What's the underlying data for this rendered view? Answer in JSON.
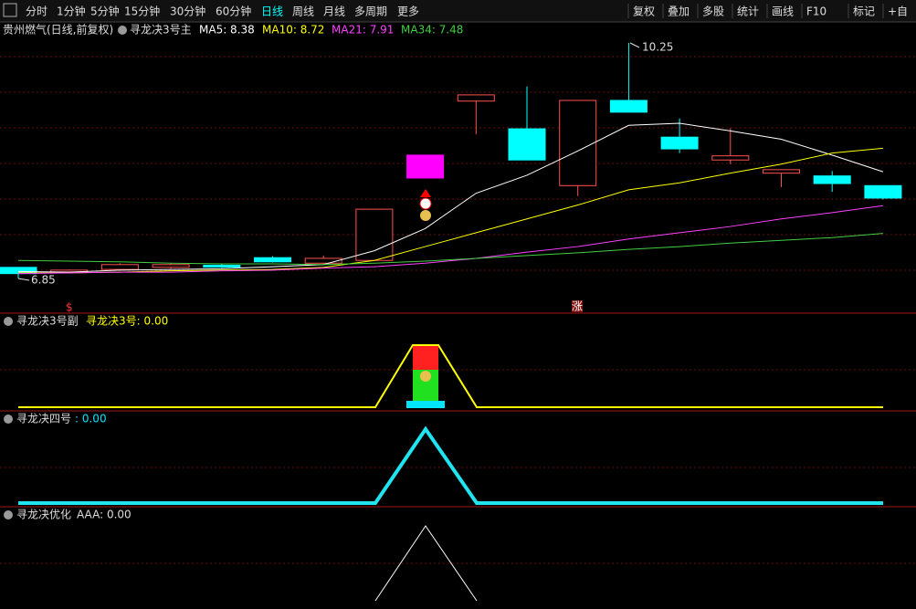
{
  "toolbar": {
    "periods": [
      "分时",
      "1分钟",
      "5分钟",
      "15分钟",
      "30分钟",
      "60分钟",
      "日线",
      "周线",
      "月线",
      "多周期",
      "更多"
    ],
    "active": "日线",
    "tools": [
      "复权",
      "叠加",
      "多股",
      "统计",
      "画线",
      "F10",
      "标记",
      "+自"
    ]
  },
  "price_panel": {
    "title": "贵州燃气(日线,前复权)",
    "indicator": "寻龙决3号主",
    "ma": [
      {
        "label": "MA5: 8.38",
        "color": "#ffffff",
        "values": [
          6.95,
          6.94,
          6.97,
          6.98,
          6.99,
          7.02,
          7.05,
          7.25,
          7.57,
          8.08,
          8.34,
          8.69,
          9.06,
          9.09,
          8.98,
          8.86,
          8.63,
          8.39
        ]
      },
      {
        "label": "MA10: 8.72",
        "color": "#ffff00",
        "values": [
          6.93,
          6.93,
          6.94,
          6.96,
          6.97,
          6.98,
          7.01,
          7.11,
          7.31,
          7.51,
          7.71,
          7.91,
          8.13,
          8.23,
          8.37,
          8.5,
          8.66,
          8.73
        ]
      },
      {
        "label": "MA21: 7.91",
        "color": "#ff40ff",
        "values": [
          6.92,
          6.93,
          6.94,
          6.94,
          6.96,
          6.97,
          7.0,
          7.02,
          7.07,
          7.14,
          7.23,
          7.31,
          7.42,
          7.51,
          7.6,
          7.71,
          7.8,
          7.9
        ]
      },
      {
        "label": "MA34: 7.48",
        "color": "#40d040",
        "values": [
          7.11,
          7.1,
          7.09,
          7.07,
          7.06,
          7.06,
          7.05,
          7.07,
          7.1,
          7.14,
          7.18,
          7.22,
          7.27,
          7.31,
          7.36,
          7.4,
          7.44,
          7.5
        ]
      }
    ],
    "candles": [
      {
        "open": 7.01,
        "high": 7.01,
        "low": 6.85,
        "close": 6.92,
        "color": "#00ffff"
      },
      {
        "open": 6.95,
        "high": 6.98,
        "low": 6.93,
        "close": 6.97,
        "color": "#ff5050"
      },
      {
        "open": 6.98,
        "high": 7.07,
        "low": 6.96,
        "close": 7.05,
        "color": "#ff5050"
      },
      {
        "open": 7.01,
        "high": 7.07,
        "low": 6.99,
        "close": 7.05,
        "color": "#ff5050"
      },
      {
        "open": 7.04,
        "high": 7.06,
        "low": 7.0,
        "close": 7.02,
        "color": "#00ffff"
      },
      {
        "open": 7.15,
        "high": 7.17,
        "low": 7.08,
        "close": 7.09,
        "color": "#00ffff"
      },
      {
        "open": 7.07,
        "high": 7.18,
        "low": 7.05,
        "close": 7.14,
        "color": "#ff5050"
      },
      {
        "open": 7.11,
        "high": 7.85,
        "low": 7.1,
        "close": 7.85,
        "color": "#ff5050"
      },
      {
        "open": 8.3,
        "high": 8.63,
        "low": 8.3,
        "close": 8.63,
        "color": "#ff00ff"
      },
      {
        "open": 9.41,
        "high": 9.5,
        "low": 8.93,
        "close": 9.5,
        "color": "#ff5050"
      },
      {
        "open": 9.01,
        "high": 9.62,
        "low": 8.56,
        "close": 8.56,
        "color": "#00ffff"
      },
      {
        "open": 8.19,
        "high": 9.42,
        "low": 8.04,
        "close": 9.42,
        "color": "#ff5050"
      },
      {
        "open": 9.42,
        "high": 10.25,
        "low": 9.25,
        "close": 9.25,
        "color": "#00ffff"
      },
      {
        "open": 8.89,
        "high": 9.16,
        "low": 8.66,
        "close": 8.72,
        "color": "#00ffff"
      },
      {
        "open": 8.56,
        "high": 9.02,
        "low": 8.5,
        "close": 8.62,
        "color": "#ff5050"
      },
      {
        "open": 8.37,
        "high": 8.42,
        "low": 8.17,
        "close": 8.42,
        "color": "#ff5050"
      },
      {
        "open": 8.33,
        "high": 8.4,
        "low": 8.1,
        "close": 8.22,
        "color": "#00ffff"
      },
      {
        "open": 8.19,
        "high": 8.19,
        "low": 7.99,
        "close": 8.01,
        "color": "#00ffff"
      }
    ],
    "high_label": "10.25",
    "low_label": "6.85",
    "signal_left": "$",
    "signal_right": "涨"
  },
  "sub_panels": [
    {
      "name": "寻龙决3号副",
      "value_label": "寻龙决3号: 0.00"
    },
    {
      "name": "寻龙决四号",
      "value_label": ": 0.00"
    },
    {
      "name": "寻龙决优化",
      "value_label": "AAA: 0.00"
    }
  ]
}
